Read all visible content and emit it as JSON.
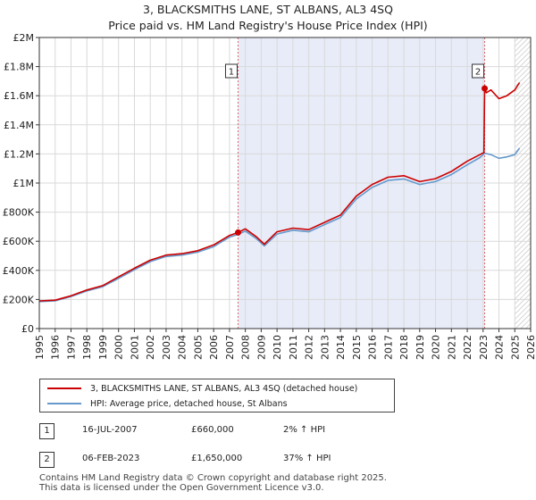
{
  "header": {
    "title_line1": "3, BLACKSMITHS LANE, ST ALBANS, AL3 4SQ",
    "title_line2": "Price paid vs. HM Land Registry's House Price Index (HPI)"
  },
  "colors": {
    "property_line": "#cc0000",
    "hpi_line": "#6699cc",
    "shade": "#e8ecf8",
    "marker_line": "#dd6666",
    "grid": "#d9d9d9"
  },
  "chart_data": {
    "type": "line",
    "title": "3, BLACKSMITHS LANE, ST ALBANS, AL3 4SQ — Price paid vs. HM Land Registry's House Price Index (HPI)",
    "xlim": [
      1995,
      2026
    ],
    "ylim": [
      0,
      2000000
    ],
    "x_ticks": [
      "1995",
      "1996",
      "1997",
      "1998",
      "1999",
      "2000",
      "2001",
      "2002",
      "2003",
      "2004",
      "2005",
      "2006",
      "2007",
      "2008",
      "2009",
      "2010",
      "2011",
      "2012",
      "2013",
      "2014",
      "2015",
      "2016",
      "2017",
      "2018",
      "2019",
      "2020",
      "2021",
      "2022",
      "2023",
      "2024",
      "2025",
      "2026"
    ],
    "y_ticks": [
      {
        "value": 0,
        "label": "£0"
      },
      {
        "value": 200000,
        "label": "£200K"
      },
      {
        "value": 400000,
        "label": "£400K"
      },
      {
        "value": 600000,
        "label": "£600K"
      },
      {
        "value": 800000,
        "label": "£800K"
      },
      {
        "value": 1000000,
        "label": "£1M"
      },
      {
        "value": 1200000,
        "label": "£1.2M"
      },
      {
        "value": 1400000,
        "label": "£1.4M"
      },
      {
        "value": 1600000,
        "label": "£1.6M"
      },
      {
        "value": 1800000,
        "label": "£1.8M"
      },
      {
        "value": 2000000,
        "label": "£2M"
      }
    ],
    "shaded_period": [
      2007.54,
      2023.1
    ],
    "forecast_from": 2025.0,
    "series": [
      {
        "name": "3, BLACKSMITHS LANE, ST ALBANS, AL3 4SQ (detached house)",
        "color": "#cc0000",
        "x": [
          1995,
          1996,
          1997,
          1998,
          1999,
          2000,
          2001,
          2002,
          2003,
          2004,
          2005,
          2006,
          2007,
          2007.54,
          2008,
          2008.7,
          2009.2,
          2010,
          2011,
          2012,
          2013,
          2014,
          2015,
          2016,
          2017,
          2018,
          2019,
          2020,
          2021,
          2022,
          2022.8,
          2023.05,
          2023.1,
          2023.2,
          2023.5,
          2024,
          2024.5,
          2025,
          2025.3
        ],
        "y": [
          190000,
          195000,
          225000,
          265000,
          295000,
          355000,
          415000,
          470000,
          505000,
          515000,
          535000,
          575000,
          640000,
          660000,
          685000,
          630000,
          580000,
          665000,
          690000,
          680000,
          730000,
          780000,
          910000,
          990000,
          1040000,
          1050000,
          1010000,
          1030000,
          1080000,
          1150000,
          1195000,
          1210000,
          1650000,
          1620000,
          1640000,
          1580000,
          1600000,
          1640000,
          1690000
        ]
      },
      {
        "name": "HPI: Average price, detached house, St Albans",
        "color": "#6699cc",
        "x": [
          1995,
          1996,
          1997,
          1998,
          1999,
          2000,
          2001,
          2002,
          2003,
          2004,
          2005,
          2006,
          2007,
          2007.54,
          2008,
          2008.7,
          2009.2,
          2010,
          2011,
          2012,
          2013,
          2014,
          2015,
          2016,
          2017,
          2018,
          2019,
          2020,
          2021,
          2022,
          2022.8,
          2023.1,
          2023.5,
          2024,
          2024.5,
          2025,
          2025.3
        ],
        "y": [
          185000,
          190000,
          220000,
          258000,
          288000,
          345000,
          405000,
          460000,
          495000,
          505000,
          525000,
          563000,
          628000,
          647000,
          670000,
          617000,
          568000,
          650000,
          676000,
          665000,
          715000,
          763000,
          890000,
          970000,
          1018000,
          1028000,
          990000,
          1010000,
          1058000,
          1125000,
          1175000,
          1205000,
          1195000,
          1170000,
          1180000,
          1195000,
          1240000
        ]
      }
    ],
    "annotations": [
      {
        "label": "1",
        "x": 2007.54,
        "y": 660000
      },
      {
        "label": "2",
        "x": 2023.1,
        "y": 1650000
      }
    ]
  },
  "legend": {
    "property_label": "3, BLACKSMITHS LANE, ST ALBANS, AL3 4SQ (detached house)",
    "hpi_label": "HPI: Average price, detached house, St Albans"
  },
  "sales": [
    {
      "marker": "1",
      "date": "16-JUL-2007",
      "price": "£660,000",
      "hpi_change": "2% ↑ HPI"
    },
    {
      "marker": "2",
      "date": "06-FEB-2023",
      "price": "£1,650,000",
      "hpi_change": "37% ↑ HPI"
    }
  ],
  "footer": {
    "line1": "Contains HM Land Registry data © Crown copyright and database right 2025.",
    "line2": "This data is licensed under the Open Government Licence v3.0."
  }
}
